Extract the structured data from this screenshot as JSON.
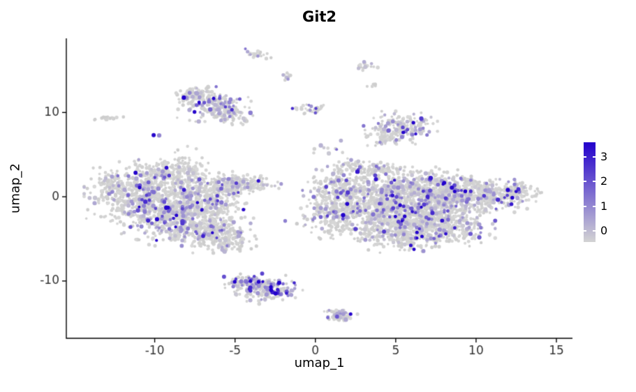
{
  "chart_data": {
    "type": "scatter",
    "title": "Git2",
    "xlabel": "umap_1",
    "ylabel": "umap_2",
    "xlim": [
      -15.5,
      16
    ],
    "ylim": [
      -16.8,
      18.8
    ],
    "x_ticks": [
      -10,
      -5,
      0,
      5,
      10,
      15
    ],
    "y_ticks": [
      -10,
      0,
      10
    ],
    "grid": false,
    "background": "#FFFFFF",
    "colorbar": {
      "ticks": [
        0,
        1,
        2,
        3
      ],
      "vmin": -0.45,
      "vmax": 3.6,
      "color_low": "#D3D3D3",
      "color_high": "#2200CC"
    },
    "expr_max": 3.3,
    "seed": 42,
    "clusters": [
      {
        "cx": -11.4,
        "cy": 0.3,
        "sx": 1.3,
        "sy": 1.6,
        "n": 280,
        "f": 0.15
      },
      {
        "cx": -9.6,
        "cy": -1.2,
        "sx": 1.5,
        "sy": 1.7,
        "n": 450,
        "f": 0.16
      },
      {
        "cx": -7.6,
        "cy": -2.6,
        "sx": 1.4,
        "sy": 1.4,
        "n": 400,
        "f": 0.16
      },
      {
        "cx": -6.2,
        "cy": -4.6,
        "sx": 1.1,
        "sy": 0.9,
        "n": 200,
        "f": 0.16
      },
      {
        "cx": -7.1,
        "cy": 0.3,
        "sx": 1.3,
        "sy": 1.2,
        "n": 280,
        "f": 0.15
      },
      {
        "cx": -9.9,
        "cy": 2.6,
        "sx": 1.0,
        "sy": 0.9,
        "n": 130,
        "f": 0.12
      },
      {
        "cx": -8.3,
        "cy": 3.1,
        "sx": 0.8,
        "sy": 0.8,
        "n": 100,
        "f": 0.12
      },
      {
        "cx": -5.3,
        "cy": 1.4,
        "sx": 0.9,
        "sy": 0.55,
        "n": 110,
        "f": 0.15
      },
      {
        "cx": -3.9,
        "cy": 1.5,
        "sx": 0.9,
        "sy": 0.45,
        "n": 80,
        "f": 0.15
      },
      {
        "cx": -12.6,
        "cy": 1.2,
        "sx": 0.5,
        "sy": 0.8,
        "n": 60,
        "f": 0.1
      },
      {
        "cx": 1.5,
        "cy": 1.0,
        "sx": 1.0,
        "sy": 1.2,
        "n": 220,
        "f": 0.17
      },
      {
        "cx": 1.4,
        "cy": -2.0,
        "sx": 1.0,
        "sy": 1.3,
        "n": 240,
        "f": 0.17
      },
      {
        "cx": 4.6,
        "cy": 0.5,
        "sx": 1.5,
        "sy": 1.2,
        "n": 400,
        "f": 0.17
      },
      {
        "cx": 4.8,
        "cy": -2.4,
        "sx": 1.6,
        "sy": 1.4,
        "n": 480,
        "f": 0.18
      },
      {
        "cx": 7.2,
        "cy": 1.0,
        "sx": 1.5,
        "sy": 1.1,
        "n": 360,
        "f": 0.17
      },
      {
        "cx": 7.4,
        "cy": -1.9,
        "sx": 1.5,
        "sy": 1.3,
        "n": 340,
        "f": 0.17
      },
      {
        "cx": 9.4,
        "cy": 0.1,
        "sx": 1.3,
        "sy": 1.0,
        "n": 260,
        "f": 0.17
      },
      {
        "cx": 8.2,
        "cy": -3.8,
        "sx": 1.3,
        "sy": 0.9,
        "n": 190,
        "f": 0.17
      },
      {
        "cx": 5.4,
        "cy": -4.8,
        "sx": 1.2,
        "sy": 0.8,
        "n": 160,
        "f": 0.18
      },
      {
        "cx": 11.2,
        "cy": 0.4,
        "sx": 1.1,
        "sy": 0.8,
        "n": 170,
        "f": 0.15
      },
      {
        "cx": 12.7,
        "cy": 0.6,
        "sx": 0.6,
        "sy": 0.45,
        "n": 70,
        "f": 0.12
      },
      {
        "cx": 4.2,
        "cy": 3.1,
        "sx": 0.6,
        "sy": 0.5,
        "n": 60,
        "f": 0.15
      },
      {
        "cx": 2.5,
        "cy": 3.5,
        "sx": 0.5,
        "sy": 0.45,
        "n": 45,
        "f": 0.15
      },
      {
        "cx": -6.3,
        "cy": 11.0,
        "sx": 1.0,
        "sy": 0.9,
        "n": 200,
        "f": 0.22
      },
      {
        "cx": -5.2,
        "cy": 9.7,
        "sx": 0.6,
        "sy": 0.5,
        "n": 60,
        "f": 0.2
      },
      {
        "cx": -7.4,
        "cy": 12.0,
        "sx": 0.55,
        "sy": 0.45,
        "n": 50,
        "f": 0.18
      },
      {
        "cx": 5.3,
        "cy": 8.2,
        "sx": 1.0,
        "sy": 0.85,
        "n": 170,
        "f": 0.24
      },
      {
        "cx": 4.3,
        "cy": 7.0,
        "sx": 0.5,
        "sy": 0.4,
        "n": 35,
        "f": 0.2
      },
      {
        "cx": -3.5,
        "cy": -10.5,
        "sx": 0.95,
        "sy": 0.6,
        "n": 140,
        "f": 0.35,
        "boost": 1.2
      },
      {
        "cx": -2.4,
        "cy": -11.2,
        "sx": 0.7,
        "sy": 0.5,
        "n": 80,
        "f": 0.35,
        "boost": 1.2
      },
      {
        "cx": -4.6,
        "cy": -10.2,
        "sx": 0.5,
        "sy": 0.4,
        "n": 45,
        "f": 0.3
      },
      {
        "cx": 1.3,
        "cy": -14.0,
        "sx": 0.6,
        "sy": 0.33,
        "rot": -30,
        "n": 55,
        "f": 0.25
      },
      {
        "cx": -3.7,
        "cy": 16.9,
        "sx": 0.5,
        "sy": 0.2,
        "rot": -15,
        "n": 24,
        "f": 0.15
      },
      {
        "cx": -1.85,
        "cy": 14.3,
        "sx": 0.26,
        "sy": 0.2,
        "n": 12,
        "f": 0.15
      },
      {
        "cx": -0.3,
        "cy": 10.4,
        "sx": 0.5,
        "sy": 0.38,
        "n": 34,
        "f": 0.2,
        "boost": 1.5
      },
      {
        "cx": 3.2,
        "cy": 15.6,
        "sx": 0.3,
        "sy": 0.26,
        "n": 16,
        "f": 0.25,
        "boost": 1.3
      },
      {
        "cx": 3.5,
        "cy": 13.2,
        "sx": 0.16,
        "sy": 0.14,
        "n": 5,
        "f": 0.2
      },
      {
        "cx": -12.9,
        "cy": 9.3,
        "sx": 0.5,
        "sy": 0.17,
        "rot": 18,
        "n": 18,
        "f": 0.05
      },
      {
        "cx": -9.8,
        "cy": 7.4,
        "sx": 0.15,
        "sy": 0.12,
        "n": 2,
        "f": 0.7,
        "boost": 2.5
      },
      {
        "cx": -8.5,
        "cy": 5.0,
        "sx": 0.5,
        "sy": 0.7,
        "n": 9,
        "f": 0.2
      },
      {
        "cx": -4.5,
        "cy": 8.8,
        "sx": 0.35,
        "sy": 0.3,
        "n": 5,
        "f": 0.2
      },
      {
        "cx": 0.9,
        "cy": 5.6,
        "sx": 0.7,
        "sy": 0.6,
        "n": 10,
        "f": 0.2
      },
      {
        "cx": -0.9,
        "cy": -3.2,
        "sx": 0.6,
        "sy": 0.8,
        "n": 12,
        "f": 0.15
      },
      {
        "cx": -3.5,
        "cy": -12.4,
        "sx": 0.5,
        "sy": 0.3,
        "n": 6,
        "f": 0.2
      },
      {
        "cx": -5.2,
        "cy": -6.0,
        "sx": 0.6,
        "sy": 0.5,
        "n": 20,
        "f": 0.15
      }
    ]
  }
}
